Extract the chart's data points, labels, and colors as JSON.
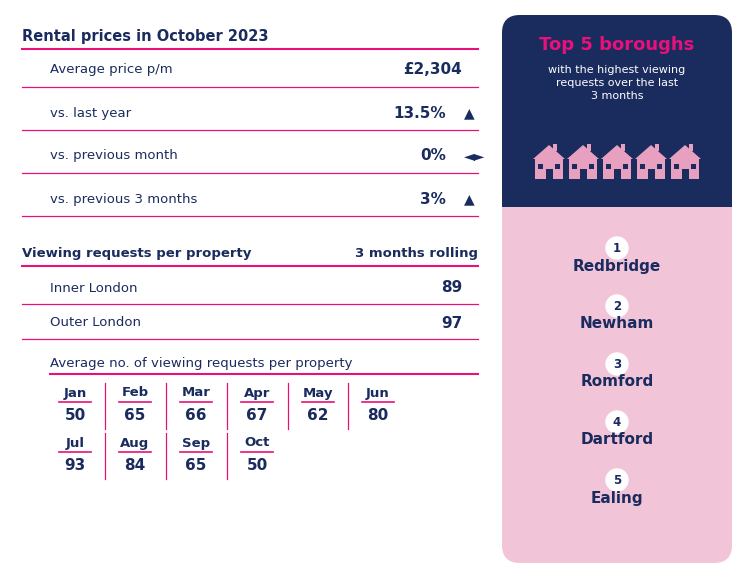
{
  "title_left": "Rental prices in October 2023",
  "rows_section1": [
    {
      "label": "Average price p/m",
      "value": "£2,304",
      "arrow": ""
    },
    {
      "label": "vs. last year",
      "value": "13.5%",
      "arrow": "▲"
    },
    {
      "label": "vs. previous month",
      "value": "0%",
      "arrow": "◄►"
    },
    {
      "label": "vs. previous 3 months",
      "value": "3%",
      "arrow": "▲"
    }
  ],
  "section2_title": "Viewing requests per property",
  "section2_subtitle": "3 months rolling",
  "section2_rows": [
    {
      "label": "Inner London",
      "value": "89"
    },
    {
      "label": "Outer London",
      "value": "97"
    }
  ],
  "section3_title": "Average no. of viewing requests per property",
  "months_row1": [
    "Jan",
    "Feb",
    "Mar",
    "Apr",
    "May",
    "Jun"
  ],
  "values_row1": [
    "50",
    "65",
    "66",
    "67",
    "62",
    "80"
  ],
  "months_row2": [
    "Jul",
    "Aug",
    "Sep",
    "Oct"
  ],
  "values_row2": [
    "93",
    "84",
    "65",
    "50"
  ],
  "right_panel_title_line1": "Top 5 boroughs",
  "right_panel_subtitle": "with the highest viewing\nrequests over the last\n3 months",
  "boroughs": [
    "Redbridge",
    "Newham",
    "Romford",
    "Dartford",
    "Ealing"
  ],
  "bg_color": "#ffffff",
  "left_text_color": "#1a2b5e",
  "pink_color": "#e8107a",
  "right_panel_dark_bg": "#1a2b5e",
  "right_panel_light_bg": "#f2c4d8",
  "house_color": "#e8a0c0",
  "house_window_color": "#1a2b5e",
  "circle_color": "#ffffff",
  "circle_text_color": "#1a2b5e",
  "right_title_color": "#e8107a",
  "right_subtitle_color": "#ffffff",
  "borough_name_color": "#1a2b5e"
}
